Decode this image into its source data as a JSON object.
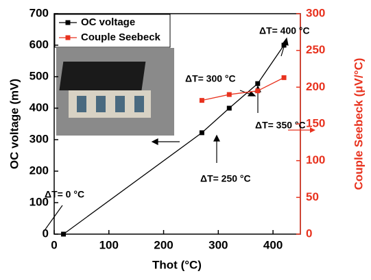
{
  "chart_data": {
    "type": "line",
    "xlabel": "Thot (°C)",
    "ylabel": "OC voltage (mV)",
    "y2label": "Couple Seebeck (μV/°C)",
    "xlim": [
      0,
      450
    ],
    "xticks": [
      0,
      100,
      200,
      300,
      400
    ],
    "ylim": [
      0,
      700
    ],
    "yticks": [
      0,
      100,
      200,
      300,
      400,
      500,
      600,
      700
    ],
    "y2lim": [
      0,
      300
    ],
    "y2ticks": [
      0,
      50,
      100,
      150,
      200,
      250,
      300
    ],
    "legend": "upper left",
    "series": [
      {
        "name": "OC voltage",
        "color": "#000000",
        "x": [
          17,
          270,
          320,
          372,
          420
        ],
        "values": [
          0,
          322,
          400,
          478,
          600
        ]
      },
      {
        "name": "Couple Seebeck",
        "color": "#e8321e",
        "axis": "y2",
        "x": [
          270,
          320,
          372,
          420
        ],
        "values": [
          182,
          190,
          195,
          213
        ]
      }
    ],
    "annotations": [
      "ΔT= 0 °C",
      "ΔT= 250 °C",
      "ΔT= 300 °C",
      "ΔT= 350 °C",
      "ΔT= 400 °C"
    ]
  }
}
